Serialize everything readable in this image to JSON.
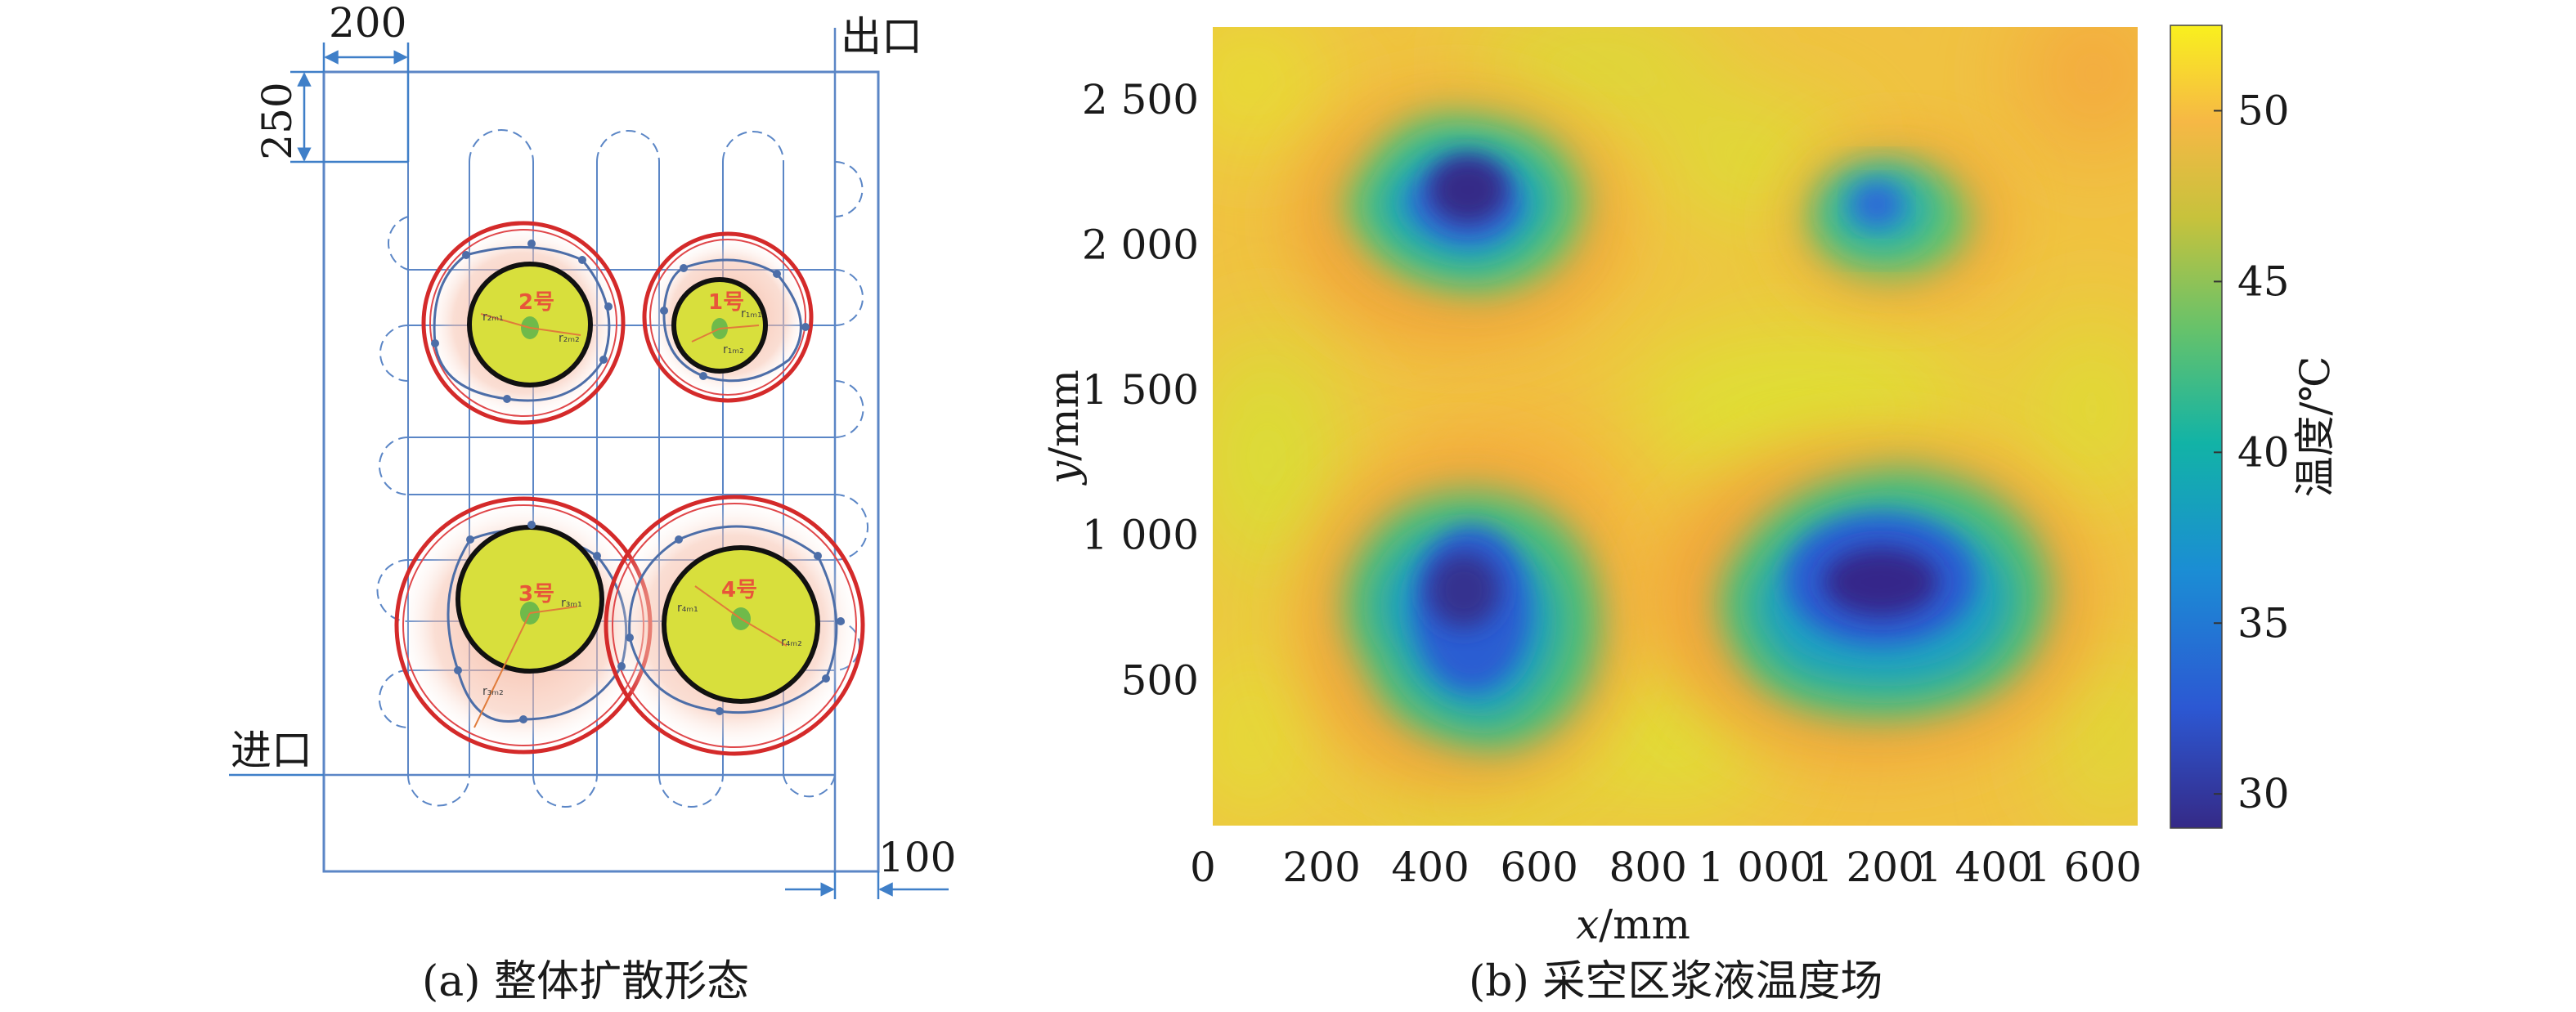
{
  "left_panel": {
    "dim_top": "200",
    "dim_left": "250",
    "dim_bottom_right": "100",
    "outlet_label": "出口",
    "inlet_label": "进口",
    "caption": "(a) 整体扩散形态",
    "circles": [
      {
        "label": "2号",
        "r1": "r₂ₘ₁",
        "r2": "r₂ₘ₂"
      },
      {
        "label": "1号",
        "r1": "r₁ₘ₁",
        "r2": "r₁ₘ₂"
      },
      {
        "label": "3号",
        "r1": "r₃ₘ₁",
        "r2": "r₃ₘ₂"
      },
      {
        "label": "4号",
        "r1": "r₄ₘ₁",
        "r2": "r₄ₘ₂"
      }
    ]
  },
  "right_panel": {
    "caption": "(b) 采空区浆液温度场",
    "xlabel_var": "x",
    "xlabel_unit": "/mm",
    "ylabel_var": "y",
    "ylabel_unit": "/mm",
    "colorbar_title": "温度/℃",
    "origin_label": "0",
    "colors": {
      "low": "#352a87",
      "mid": "#35b779",
      "high": "#f9d62a",
      "warm": "#f6b845"
    }
  },
  "chart_data": {
    "type": "heatmap",
    "xlabel": "x/mm",
    "ylabel": "y/mm",
    "xlim": [
      0,
      1700
    ],
    "ylim": [
      0,
      2750
    ],
    "x_ticks": [
      "200",
      "400",
      "600",
      "800",
      "1 000",
      "1 200",
      "1 400",
      "1 600"
    ],
    "x_tick_values": [
      200,
      400,
      600,
      800,
      1000,
      1200,
      1400,
      1600
    ],
    "y_ticks": [
      "500",
      "1 000",
      "1 500",
      "2 000",
      "2 500"
    ],
    "y_tick_values": [
      500,
      1000,
      1500,
      2000,
      2500
    ],
    "colorbar_label": "温度/℃",
    "colorbar_ticks": [
      "30",
      "35",
      "40",
      "45",
      "50"
    ],
    "colorbar_tick_values": [
      30,
      35,
      40,
      45,
      50
    ],
    "colorbar_range": [
      29,
      52.5
    ],
    "background_temperature": 51,
    "cold_spots": [
      {
        "name": "2号",
        "x": 460,
        "y": 2130,
        "min_temperature": 31
      },
      {
        "name": "1号",
        "x": 1230,
        "y": 2140,
        "min_temperature": 36
      },
      {
        "name": "3号",
        "x": 480,
        "y": 800,
        "min_temperature": 32
      },
      {
        "name": "4号",
        "x": 1220,
        "y": 850,
        "min_temperature": 30
      }
    ]
  }
}
